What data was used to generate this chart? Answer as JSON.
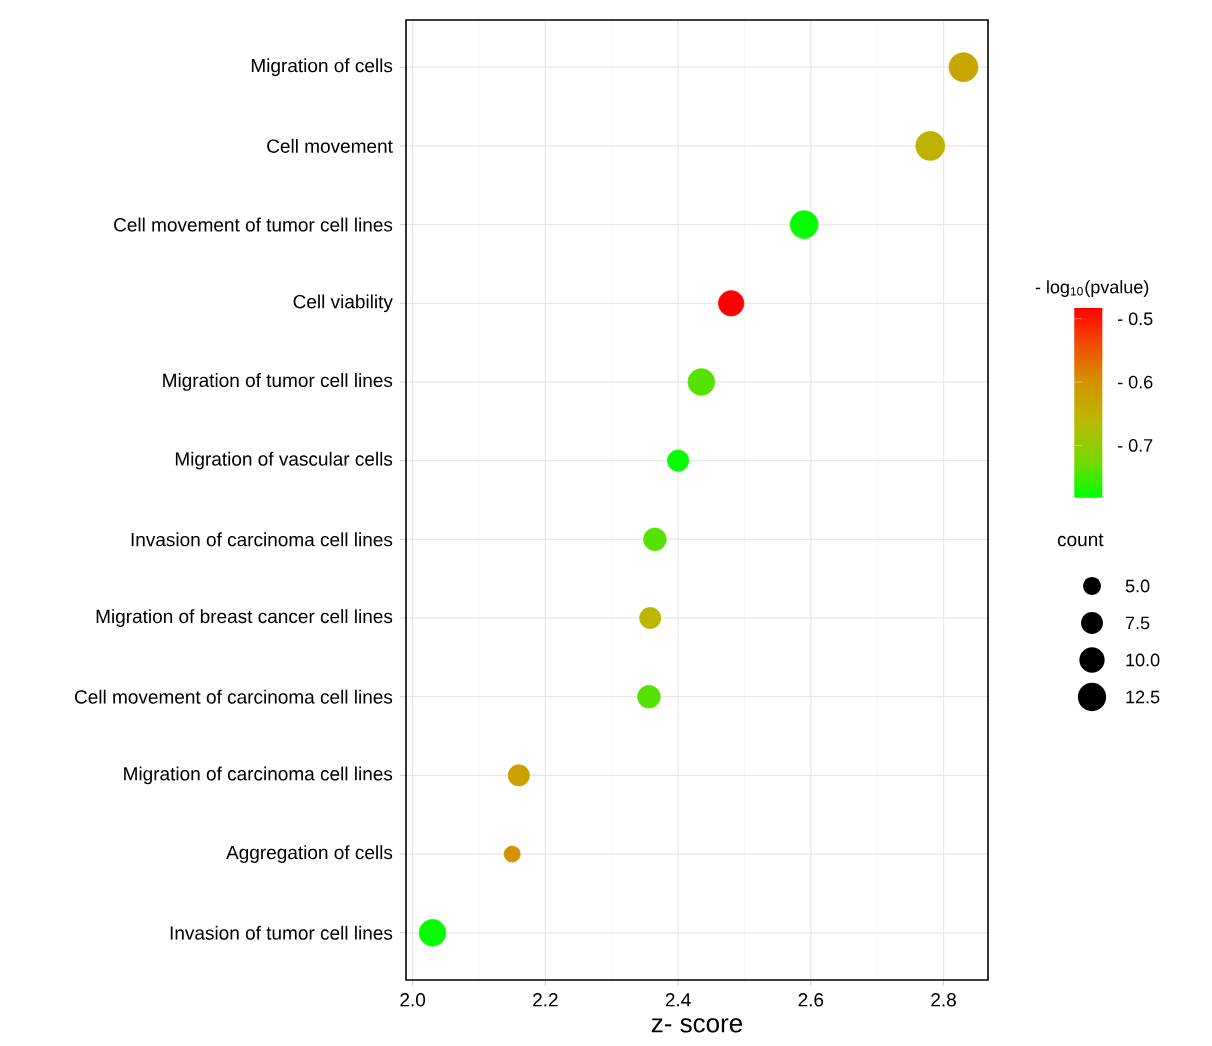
{
  "chart_data": {
    "type": "scatter",
    "xlabel": "z- score",
    "clabel": "- log$_{10}$(pvalue)",
    "legend_title": "count",
    "categories": [
      "Migration of cells",
      "Cell movement",
      "Cell movement of tumor cell lines",
      "Cell viability",
      "Migration of tumor cell lines",
      "Migration of vascular cells",
      "Invasion of carcinoma cell lines",
      "Migration of breast cancer cell lines",
      "Cell movement of carcinoma cell lines",
      "Migration of carcinoma cell lines",
      "Aggregation of cells",
      "Invasion of tumor cell lines"
    ],
    "values": [
      2.83,
      2.78,
      2.59,
      2.48,
      2.435,
      2.4,
      2.365,
      2.358,
      2.356,
      2.16,
      2.15,
      2.03
    ],
    "cvalues": [
      -0.63,
      -0.65,
      -0.78,
      -0.483,
      -0.74,
      -0.78,
      -0.74,
      -0.66,
      -0.74,
      -0.62,
      -0.6,
      -0.78
    ],
    "sizes": [
      13,
      13,
      12,
      10,
      11,
      7,
      8,
      7,
      8,
      7,
      4,
      11
    ],
    "size_legend": [
      {
        "value": 5,
        "label": "5.0"
      },
      {
        "value": 7.5,
        "label": "7.5"
      },
      {
        "value": 10,
        "label": "10.0"
      },
      {
        "value": 12.5,
        "label": "12.5"
      }
    ],
    "orientation": "horizontal",
    "xlim": [
      1.99,
      2.867
    ],
    "xticks": [
      {
        "value": 2.0,
        "label": "2.0"
      },
      {
        "value": 2.2,
        "label": "2.2"
      },
      {
        "value": 2.4,
        "label": "2.4"
      },
      {
        "value": 2.6,
        "label": "2.6"
      },
      {
        "value": 2.8,
        "label": "2.8"
      }
    ],
    "clim": [
      -0.783,
      -0.483
    ],
    "cticks": [
      {
        "value": -0.5,
        "label": "- 0.5"
      },
      {
        "value": -0.6,
        "label": "- 0.6"
      },
      {
        "value": -0.7,
        "label": "- 0.7"
      }
    ],
    "grid": true,
    "marker": "circle"
  }
}
